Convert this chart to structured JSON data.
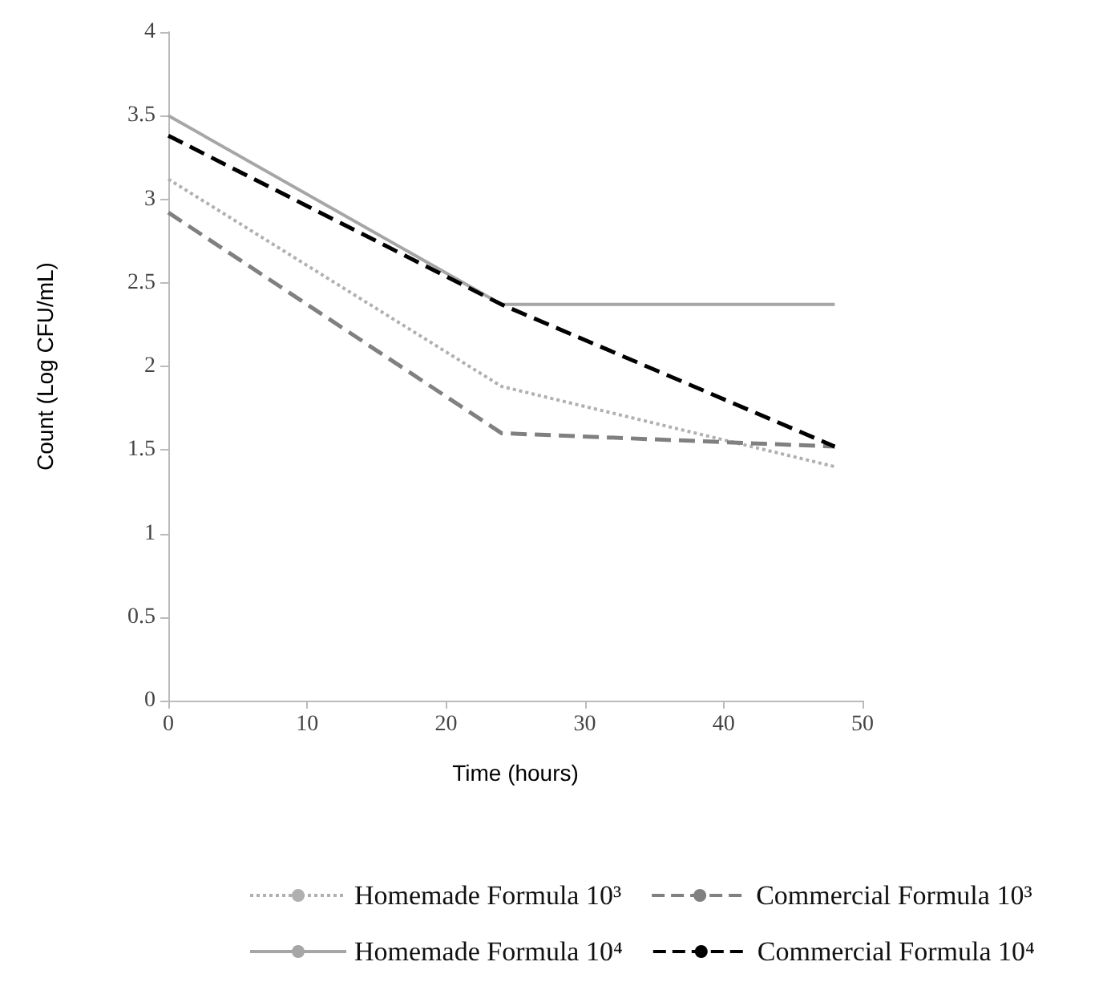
{
  "chart_data": {
    "type": "line",
    "xlabel": "Time (hours)",
    "ylabel": "Count (Log CFU/mL)",
    "x": [
      0,
      24,
      48
    ],
    "series": [
      {
        "name": "Homemade Formula 10³",
        "color": "#b0b0b0",
        "line_style": "dotted",
        "values": [
          3.12,
          1.88,
          1.4
        ]
      },
      {
        "name": "Commercial Formula 10³",
        "color": "#808080",
        "line_style": "dashed",
        "values": [
          2.92,
          1.6,
          1.52
        ]
      },
      {
        "name": "Homemade Formula 10⁴",
        "color": "#a6a6a6",
        "line_style": "solid",
        "values": [
          3.5,
          2.37,
          2.37
        ]
      },
      {
        "name": "Commercial Formula 10⁴",
        "color": "#000000",
        "line_style": "dashed",
        "values": [
          3.38,
          2.37,
          1.52
        ]
      }
    ],
    "xlim": [
      0,
      50
    ],
    "xticks": [
      0,
      10,
      20,
      30,
      40,
      50
    ],
    "ylim": [
      0,
      4
    ],
    "yticks": [
      0,
      0.5,
      1,
      1.5,
      2,
      2.5,
      3,
      3.5,
      4
    ],
    "grid": false,
    "legend": "bottom",
    "marker": "none"
  }
}
